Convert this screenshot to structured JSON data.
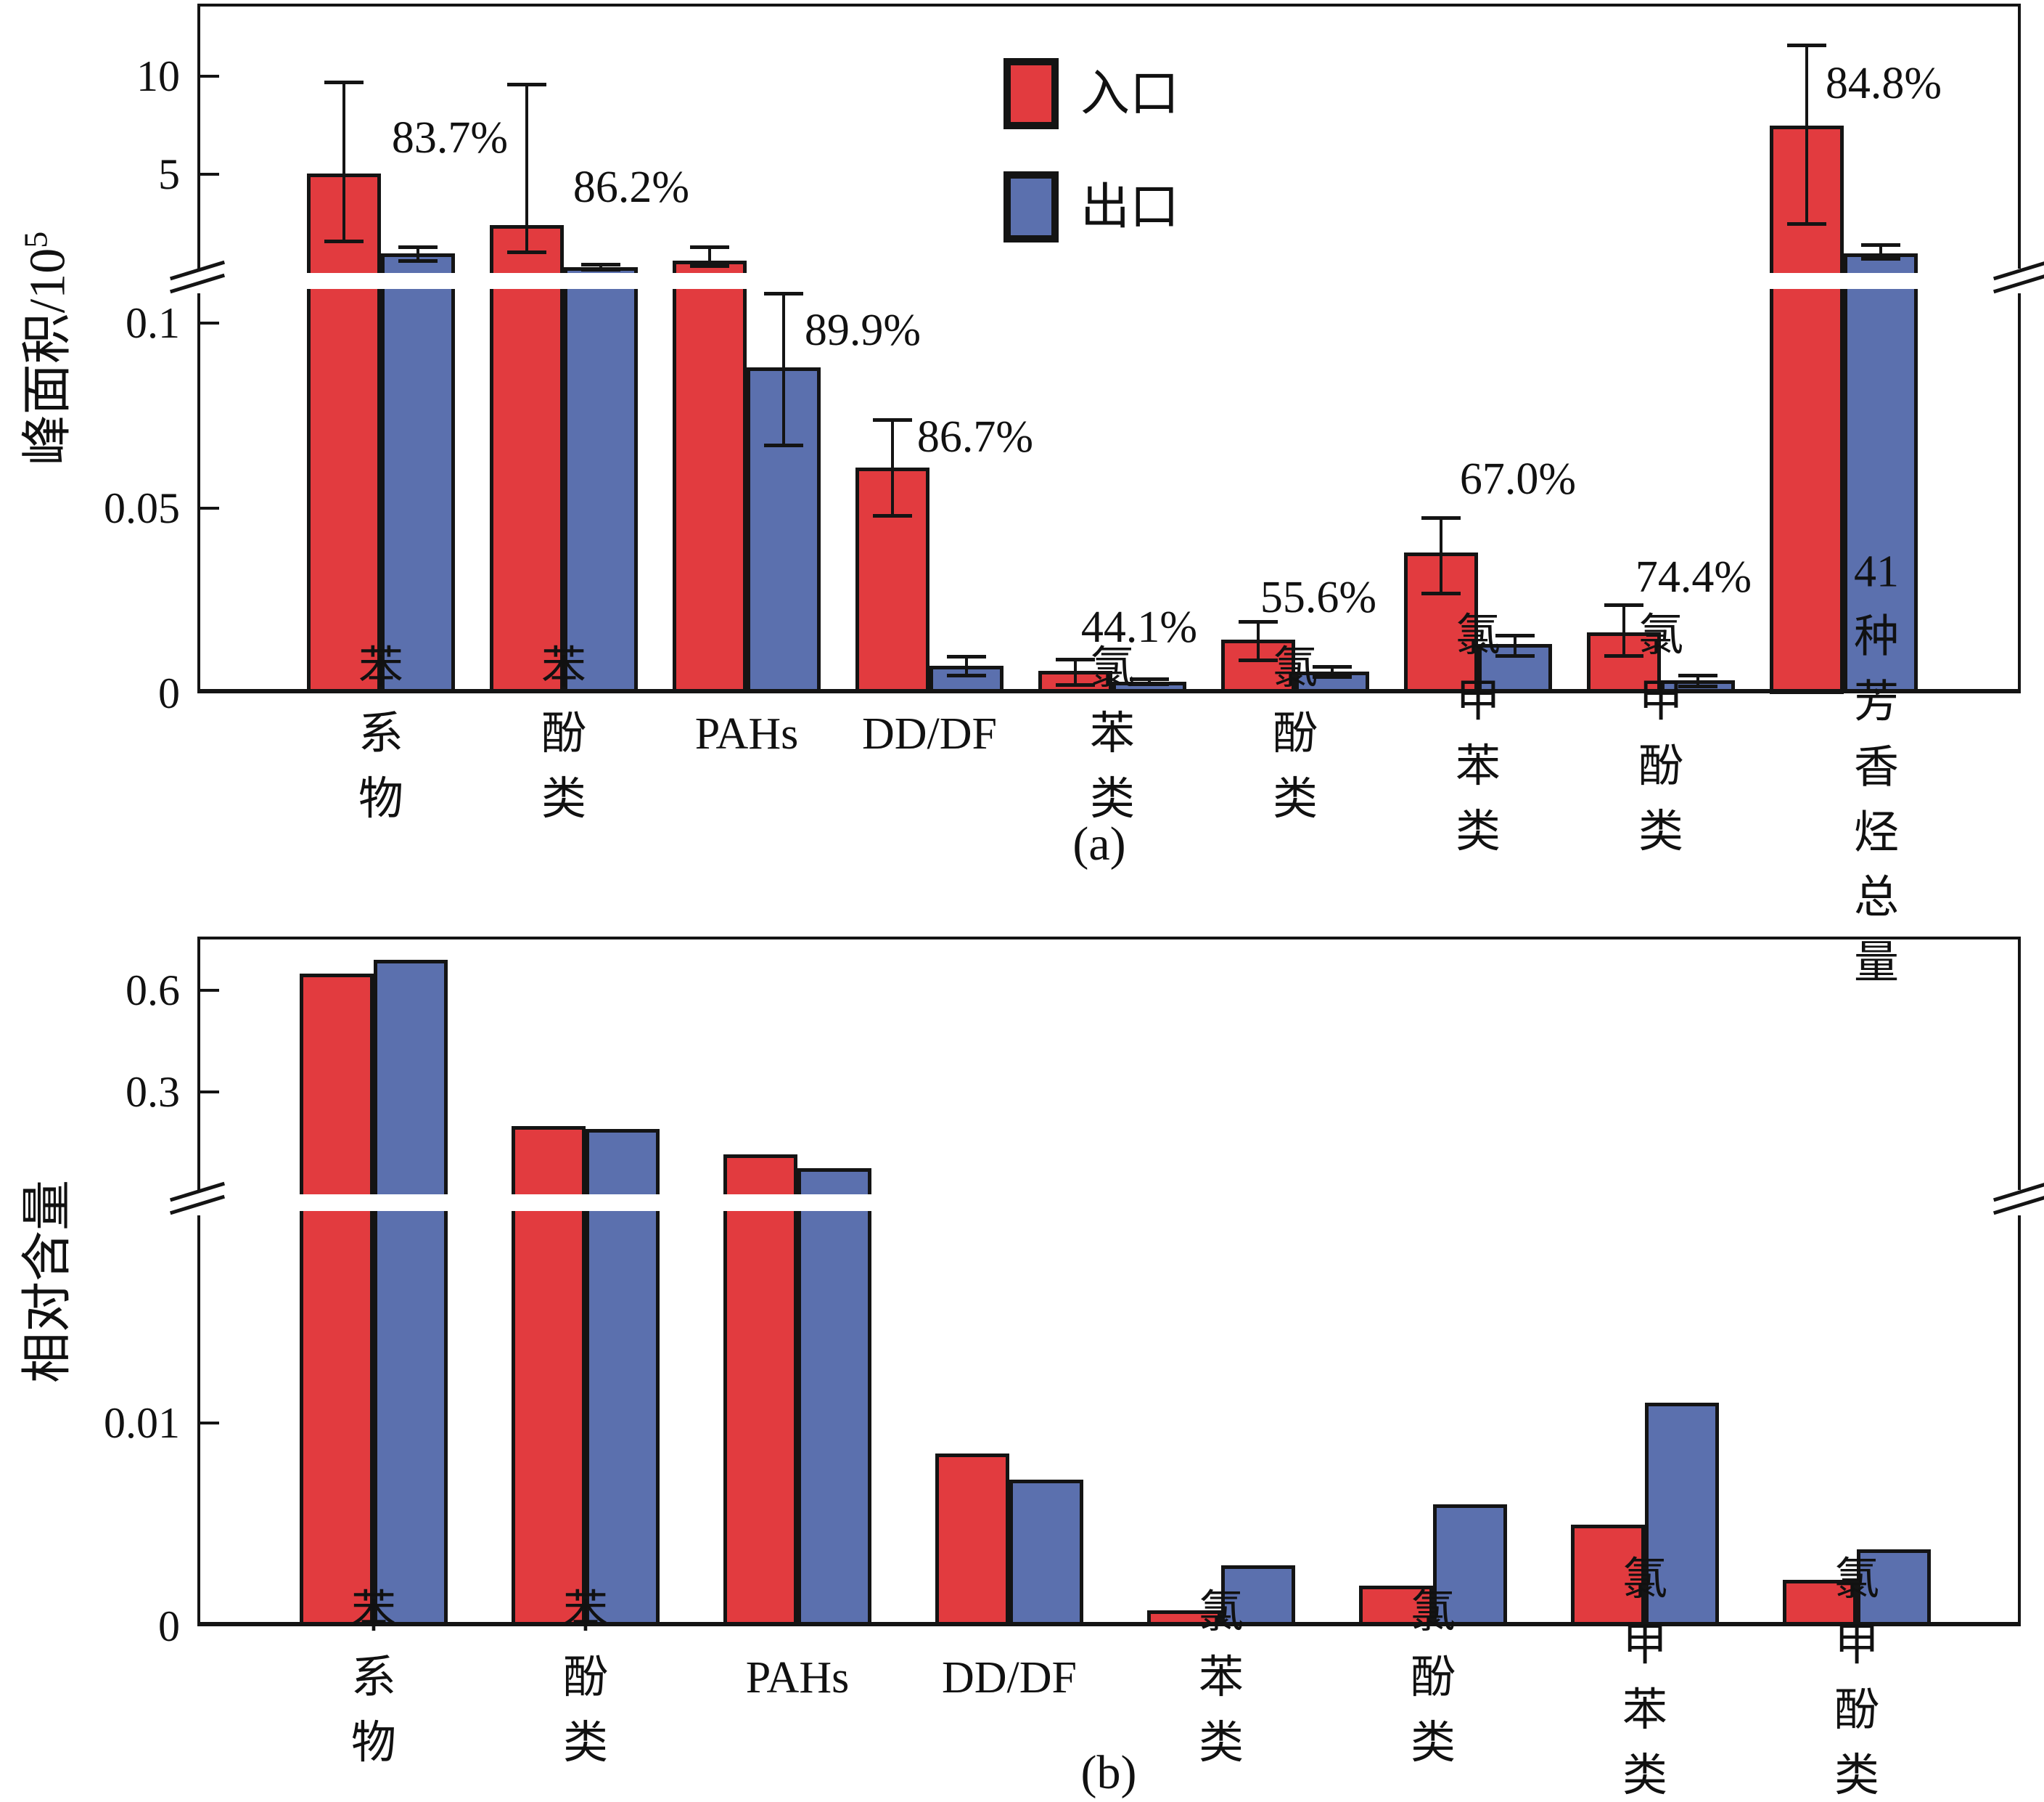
{
  "figure_bg": "#ffffff",
  "colors": {
    "inlet": "#e23b3f",
    "outlet": "#5b70ae",
    "outline": "#141414"
  },
  "legend": {
    "items": [
      {
        "key": "inlet",
        "label": "入口"
      },
      {
        "key": "outlet",
        "label": "出口"
      }
    ]
  },
  "panels": {
    "a": {
      "caption": "(a)",
      "ylabel": "峰面积/10",
      "ylabel_sup": "5"
    },
    "b": {
      "caption": "(b)",
      "ylabel": "相对含量",
      "ylabel_sup": ""
    }
  },
  "chart_data": [
    {
      "id": "a",
      "type": "bar",
      "broken_axis": true,
      "ylabel": "峰面积/10^5",
      "categories": [
        "苯系物",
        "苯酚类",
        "PAHs",
        "DD/DF",
        "氯苯类",
        "氯酚类",
        "氯甲苯类",
        "氯甲酚类",
        "41种芳香烃\n总量"
      ],
      "upper_axis": {
        "ticks": [
          "5",
          "10"
        ],
        "range": [
          0,
          13.7
        ]
      },
      "lower_axis": {
        "ticks": [
          "0",
          "0.05",
          "0.1"
        ],
        "range": [
          0,
          0.109
        ]
      },
      "series": [
        {
          "key": "inlet",
          "name": "入口",
          "values": [
            5.05,
            2.4,
            0.6,
            0.061,
            0.006,
            0.0145,
            0.038,
            0.0165,
            7.5
          ],
          "err_lo": [
            1.6,
            1.05,
            0.35,
            0.048,
            0.0024,
            0.009,
            0.027,
            0.0102,
            2.5
          ],
          "err_hi": [
            9.7,
            9.6,
            1.3,
            0.074,
            0.0092,
            0.0195,
            0.0475,
            0.024,
            11.6
          ]
        },
        {
          "key": "outlet",
          "name": "出口",
          "values": [
            0.95,
            0.25,
            0.088,
            0.0075,
            0.0031,
            0.0059,
            0.0133,
            0.0035,
            0.95
          ],
          "err_lo": [
            0.6,
            0.15,
            0.067,
            0.005,
            0.0025,
            0.0045,
            0.0102,
            0.002,
            0.7
          ],
          "err_hi": [
            1.3,
            0.4,
            0.108,
            0.01,
            0.004,
            0.0072,
            0.0157,
            0.005,
            1.4
          ]
        }
      ],
      "removal_rate_labels": [
        "83.7%",
        "86.2%",
        "89.9%",
        "86.7%",
        "44.1%",
        "55.6%",
        "67.0%",
        "74.4%",
        "84.8%"
      ]
    },
    {
      "id": "b",
      "type": "bar",
      "broken_axis": true,
      "ylabel": "相对含量",
      "categories": [
        "苯系物",
        "苯酚类",
        "PAHs",
        "DD/DF",
        "氯苯类",
        "氯酚类",
        "氯甲苯类",
        "氯甲酚类"
      ],
      "upper_axis": {
        "ticks": [
          "0.3",
          "0.6"
        ],
        "range": [
          0,
          0.76
        ]
      },
      "lower_axis": {
        "ticks": [
          "0",
          "0.01"
        ],
        "range": [
          0,
          0.0204
        ]
      },
      "series": [
        {
          "key": "inlet",
          "name": "入口",
          "values": [
            0.65,
            0.2,
            0.115,
            0.0085,
            0.0008,
            0.002,
            0.005,
            0.0023
          ]
        },
        {
          "key": "outlet",
          "name": "出口",
          "values": [
            0.69,
            0.19,
            0.075,
            0.0072,
            0.003,
            0.006,
            0.011,
            0.0038
          ]
        }
      ],
      "removal_rate_labels": []
    }
  ]
}
